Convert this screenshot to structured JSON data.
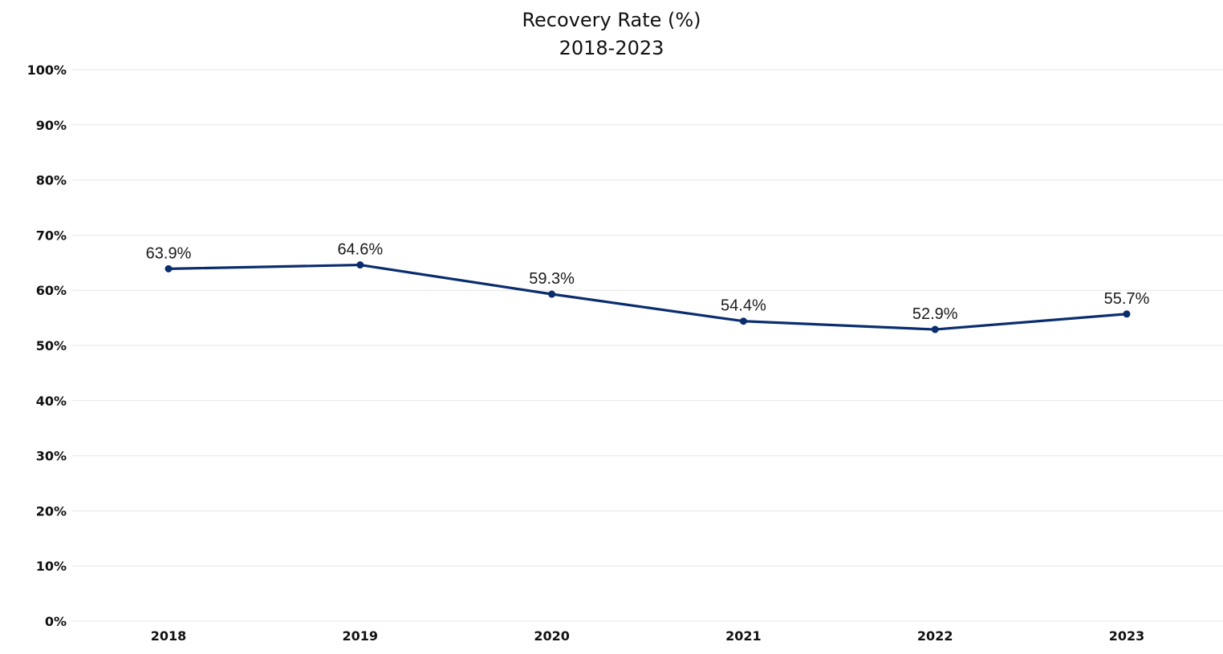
{
  "chart_data": {
    "type": "line",
    "title": "Recovery Rate (%)",
    "subtitle": "2018-2023",
    "xlabel": "",
    "ylabel": "",
    "categories": [
      "2018",
      "2019",
      "2020",
      "2021",
      "2022",
      "2023"
    ],
    "series": [
      {
        "values": [
          63.9,
          64.6,
          59.3,
          54.4,
          52.9,
          55.7
        ],
        "labels": [
          "63.9%",
          "64.6%",
          "59.3%",
          "54.4%",
          "52.9%",
          "55.7%"
        ],
        "color": "#0a2d6e"
      }
    ],
    "ylim": [
      0,
      100
    ],
    "yticks": [
      0,
      10,
      20,
      30,
      40,
      50,
      60,
      70,
      80,
      90,
      100
    ],
    "ytick_labels": [
      "0%",
      "10%",
      "20%",
      "30%",
      "40%",
      "50%",
      "60%",
      "70%",
      "80%",
      "90%",
      "100%"
    ],
    "grid": true,
    "legend": "none"
  }
}
